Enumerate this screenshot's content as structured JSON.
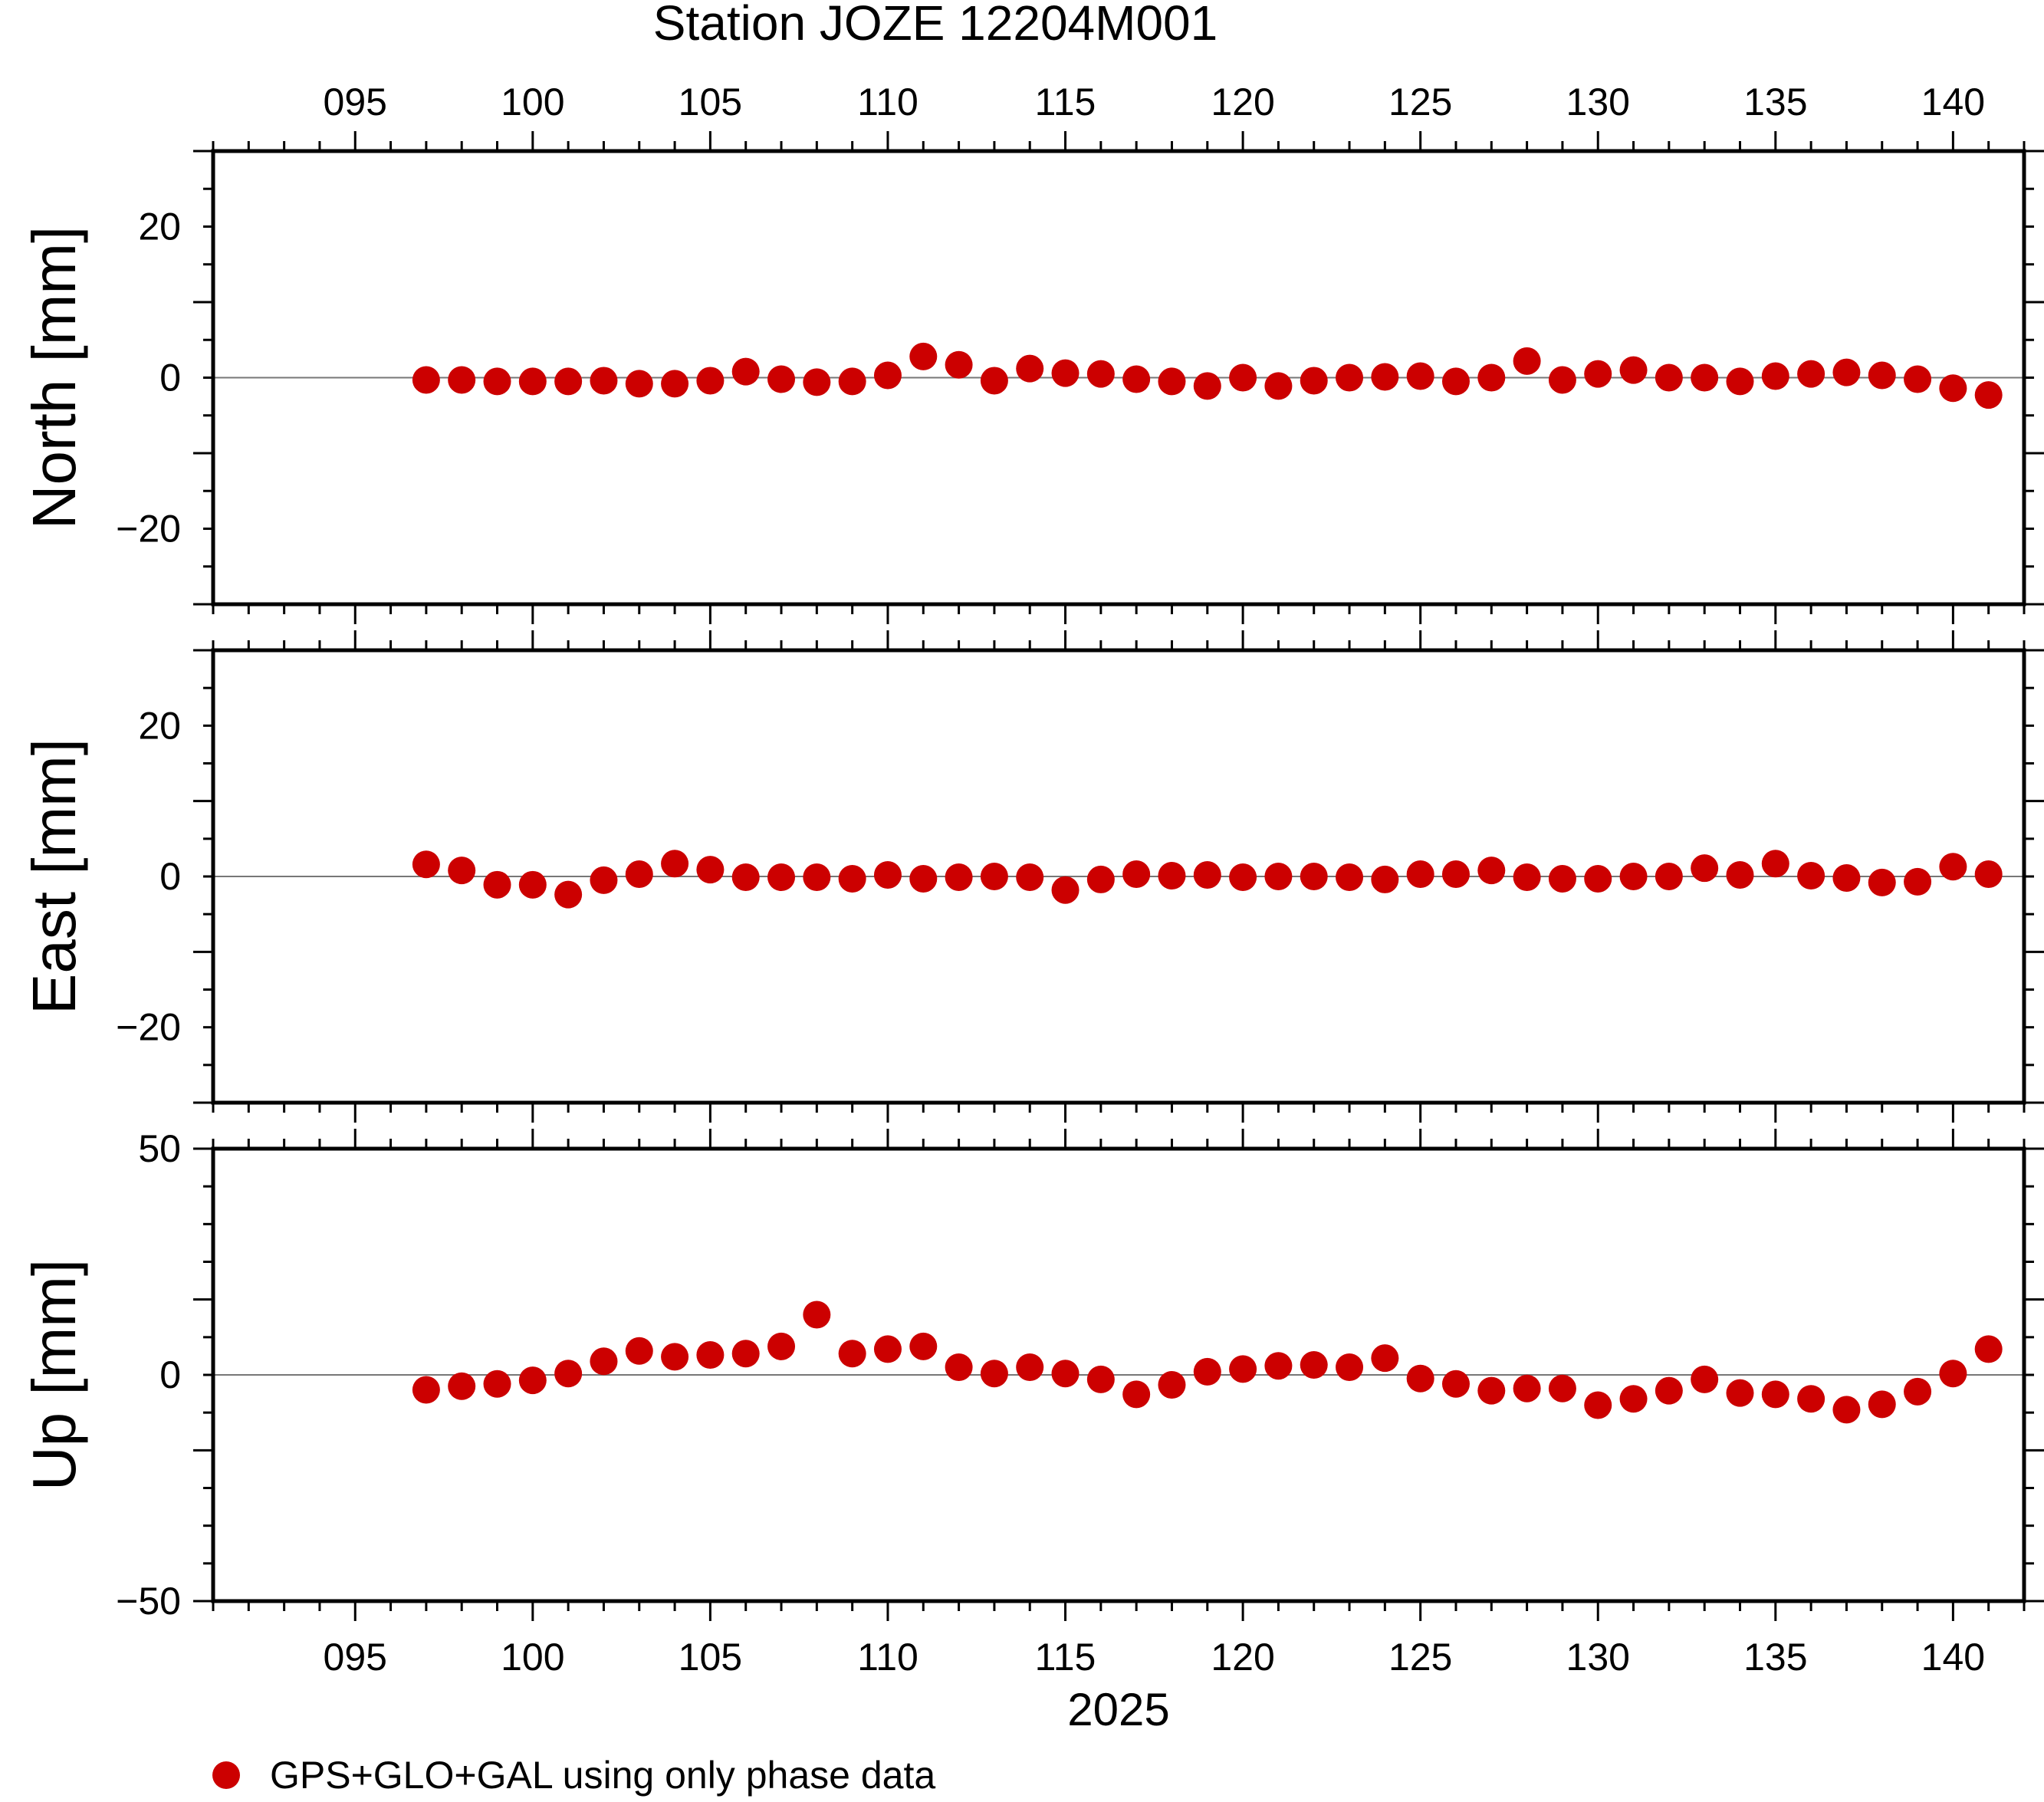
{
  "title": "Station JOZE 12204M001",
  "marker_color": "#cc0000",
  "year_label": "2025",
  "legend": {
    "label": "GPS+GLO+GAL using only phase data"
  },
  "chart_data": {
    "type": "scatter",
    "x_range": [
      91,
      142
    ],
    "x_ticks": [
      95,
      100,
      105,
      110,
      115,
      120,
      125,
      130,
      135,
      140
    ],
    "x_tick_labels": [
      "095",
      "100",
      "105",
      "110",
      "115",
      "120",
      "125",
      "130",
      "135",
      "140"
    ],
    "x": [
      97,
      98,
      99,
      100,
      101,
      102,
      103,
      104,
      105,
      106,
      107,
      108,
      109,
      110,
      111,
      112,
      113,
      114,
      115,
      116,
      117,
      118,
      119,
      120,
      121,
      122,
      123,
      124,
      125,
      126,
      127,
      128,
      129,
      130,
      131,
      132,
      133,
      134,
      135,
      136,
      137,
      138,
      139,
      140,
      141
    ],
    "panels": [
      {
        "ylabel": "North [mm]",
        "ylim": [
          -30,
          30
        ],
        "yticks": [
          -20,
          0,
          20
        ],
        "ytick_labels": [
          "−20",
          "0",
          "20"
        ],
        "values": [
          -0.3,
          -0.3,
          -0.5,
          -0.5,
          -0.5,
          -0.4,
          -0.8,
          -0.8,
          -0.4,
          0.8,
          -0.2,
          -0.6,
          -0.5,
          0.3,
          2.8,
          1.7,
          -0.4,
          1.2,
          0.6,
          0.5,
          -0.2,
          -0.5,
          -1.1,
          0.0,
          -1.1,
          -0.4,
          0.0,
          0.1,
          0.2,
          -0.5,
          0.0,
          2.2,
          -0.3,
          0.5,
          1.0,
          0.0,
          0.0,
          -0.5,
          0.2,
          0.5,
          0.7,
          0.3,
          -0.2,
          -1.4,
          -2.3
        ]
      },
      {
        "ylabel": "East [mm]",
        "ylim": [
          -30,
          30
        ],
        "yticks": [
          -20,
          0,
          20
        ],
        "ytick_labels": [
          "−20",
          "0",
          "20"
        ],
        "values": [
          1.6,
          0.8,
          -1.1,
          -1.1,
          -2.4,
          -0.5,
          0.3,
          1.7,
          0.9,
          -0.1,
          -0.1,
          -0.1,
          -0.3,
          0.2,
          -0.3,
          -0.1,
          0.0,
          -0.1,
          -1.8,
          -0.4,
          0.3,
          0.1,
          0.2,
          -0.1,
          0.0,
          0.0,
          -0.1,
          -0.4,
          0.3,
          0.3,
          0.8,
          -0.1,
          -0.3,
          -0.3,
          0.0,
          0.0,
          1.1,
          0.2,
          1.7,
          0.1,
          -0.2,
          -0.8,
          -0.7,
          1.3,
          0.3
        ]
      },
      {
        "ylabel": "Up [mm]",
        "ylim": [
          -50,
          50
        ],
        "yticks": [
          -50,
          0,
          50
        ],
        "ytick_labels": [
          "−50",
          "0",
          "50"
        ],
        "values": [
          -3.3,
          -2.5,
          -2.0,
          -1.2,
          0.3,
          3.0,
          5.3,
          4.0,
          4.4,
          4.7,
          6.3,
          13.3,
          4.7,
          5.7,
          6.3,
          1.7,
          0.3,
          1.7,
          0.3,
          -1.0,
          -4.3,
          -2.2,
          0.7,
          1.3,
          2.0,
          2.2,
          1.7,
          3.7,
          -0.8,
          -2.0,
          -3.5,
          -3.0,
          -3.0,
          -6.7,
          -5.3,
          -3.5,
          -1.0,
          -4.0,
          -4.3,
          -5.3,
          -7.7,
          -6.5,
          -3.7,
          0.3,
          5.7
        ]
      }
    ]
  }
}
